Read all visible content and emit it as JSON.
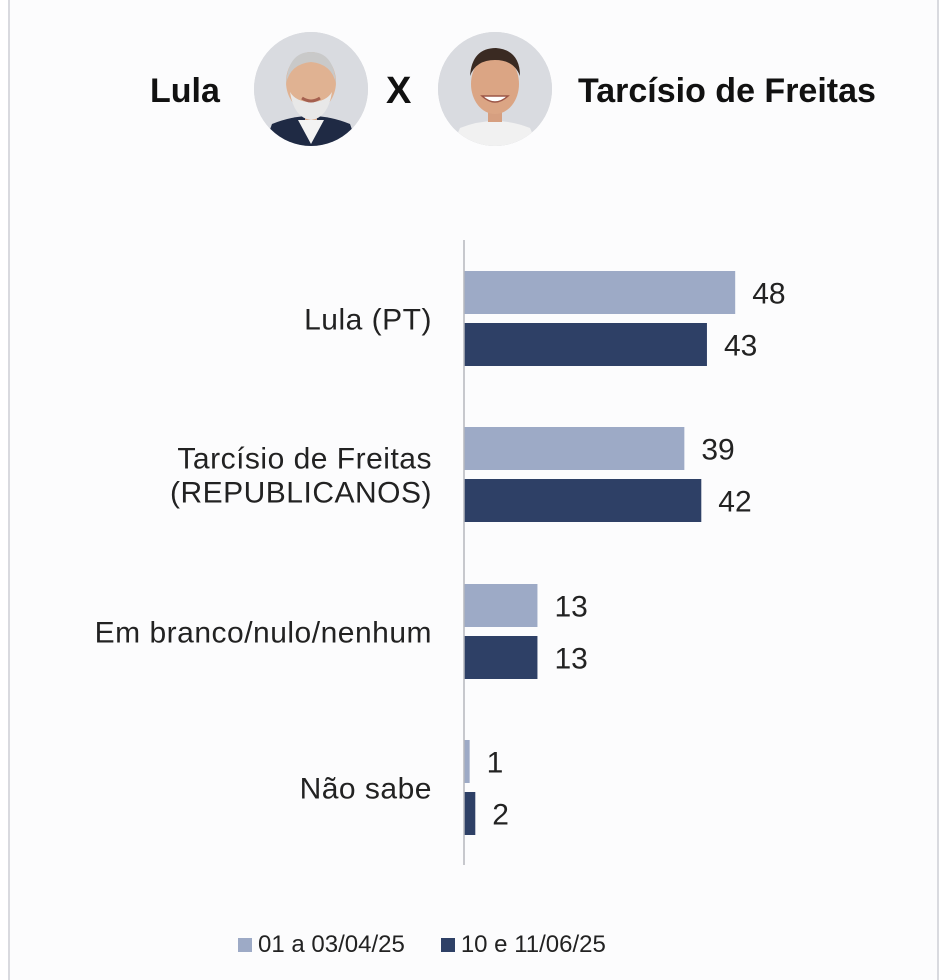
{
  "header": {
    "left_name": "Lula",
    "vs": "X",
    "right_name": "Tarcísio de Freitas"
  },
  "colors": {
    "series1": "#9daac6",
    "series2": "#2e4066",
    "axis": "#b5b7bd",
    "text": "#222222"
  },
  "chart_data": {
    "type": "bar",
    "orientation": "horizontal",
    "categories": [
      "Lula (PT)",
      "Tarcísio de Freitas (REPUBLICANOS)",
      "Em branco/nulo/nenhum",
      "Não sabe"
    ],
    "category_lines": [
      [
        "Lula (PT)"
      ],
      [
        "Tarcísio de Freitas",
        "(REPUBLICANOS)"
      ],
      [
        "Em branco/nulo/nenhum"
      ],
      [
        "Não sabe"
      ]
    ],
    "series": [
      {
        "name": "01 a 03/04/25",
        "values": [
          48,
          39,
          13,
          1
        ]
      },
      {
        "name": "10 e 11/06/25",
        "values": [
          43,
          42,
          13,
          2
        ]
      }
    ],
    "data_labels": true,
    "grid": false,
    "legend": "bottom",
    "title": "",
    "xlabel": "",
    "ylabel": ""
  }
}
